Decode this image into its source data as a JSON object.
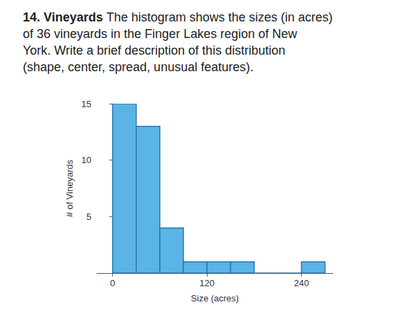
{
  "chart_data": {
    "type": "histogram",
    "title": "14. Vineyards",
    "subtitle": "The histogram shows the sizes (in acres) of 36 vineyards in the Finger Lakes region of New York. Write a brief description of this distribution (shape, center, spread, unusual features).",
    "x_label": "Size (acres)",
    "y_label": "# of Vineyards",
    "bins": [
      0,
      30,
      60,
      90,
      120,
      150,
      180,
      210,
      240,
      270
    ],
    "values": [
      15,
      13,
      4,
      1,
      1,
      1,
      0,
      0,
      1
    ],
    "color": "#5ab4e6",
    "xlim": [
      -20,
      280
    ],
    "xticks": [
      0,
      120,
      240
    ],
    "ylim": [
      0,
      15
    ],
    "yticks": [
      5,
      10,
      15
    ],
    "grid": false
  }
}
